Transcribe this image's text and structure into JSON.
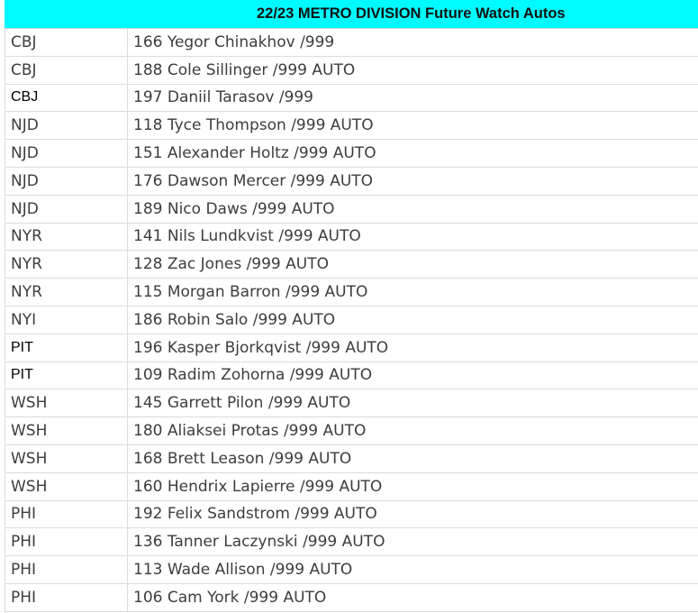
{
  "title": "22/23 METRO DIVISION Future Watch Autos",
  "header_color": "#00fbff",
  "rows": [
    {
      "team": "CBJ",
      "card": "166 Yegor Chinakhov /999"
    },
    {
      "team": "CBJ",
      "card": "188 Cole Sillinger /999 AUTO"
    },
    {
      "team": "CBJ",
      "card": "197 Daniil Tarasov /999"
    },
    {
      "team": "NJD",
      "card": "118 Tyce Thompson /999 AUTO"
    },
    {
      "team": "NJD",
      "card": "151 Alexander Holtz /999 AUTO"
    },
    {
      "team": "NJD",
      "card": "176 Dawson Mercer /999 AUTO"
    },
    {
      "team": "NJD",
      "card": "189 Nico Daws /999 AUTO"
    },
    {
      "team": "NYR",
      "card": "141 Nils Lundkvist /999 AUTO"
    },
    {
      "team": "NYR",
      "card": "128 Zac Jones /999 AUTO"
    },
    {
      "team": "NYR",
      "card": "115 Morgan Barron /999 AUTO"
    },
    {
      "team": "NYI",
      "card": "186 Robin Salo /999 AUTO"
    },
    {
      "team": "PIT",
      "card": "196 Kasper Bjorkqvist /999 AUTO"
    },
    {
      "team": "PIT",
      "card": "109 Radim Zohorna /999 AUTO"
    },
    {
      "team": "WSH",
      "card": "145 Garrett Pilon /999 AUTO"
    },
    {
      "team": "WSH",
      "card": "180 Aliaksei Protas /999 AUTO"
    },
    {
      "team": "WSH",
      "card": "168 Brett Leason /999 AUTO"
    },
    {
      "team": "WSH",
      "card": "160 Hendrix Lapierre /999 AUTO"
    },
    {
      "team": "PHI",
      "card": "192 Felix Sandstrom /999 AUTO"
    },
    {
      "team": "PHI",
      "card": "136 Tanner Laczynski /999 AUTO"
    },
    {
      "team": "PHI",
      "card": "113 Wade Allison /999 AUTO"
    },
    {
      "team": "PHI",
      "card": "106 Cam York /999 AUTO"
    }
  ]
}
